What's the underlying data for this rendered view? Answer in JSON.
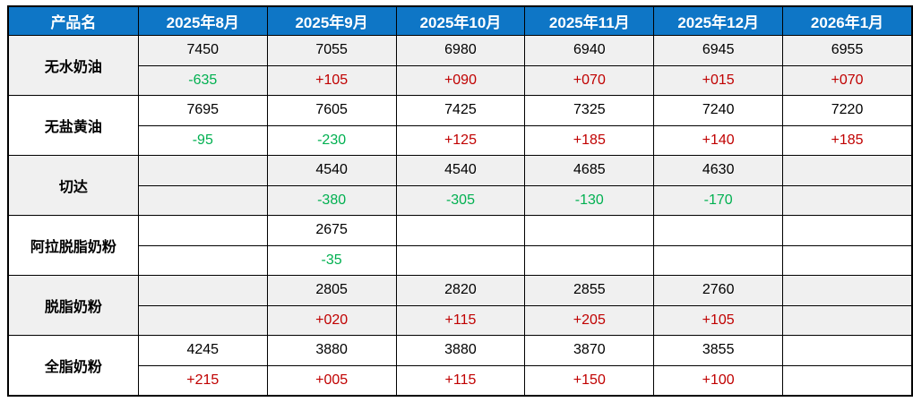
{
  "table": {
    "columns": [
      "产品名",
      "2025年8月",
      "2025年9月",
      "2025年10月",
      "2025年11月",
      "2025年12月",
      "2026年1月"
    ],
    "products": [
      {
        "name": "无水奶油",
        "prices": [
          "7450",
          "7055",
          "6980",
          "6940",
          "6945",
          "6955"
        ],
        "changes": [
          "-635",
          "+105",
          "+090",
          "+070",
          "+015",
          "+070"
        ]
      },
      {
        "name": "无盐黄油",
        "prices": [
          "7695",
          "7605",
          "7425",
          "7325",
          "7240",
          "7220"
        ],
        "changes": [
          "-95",
          "-230",
          "+125",
          "+185",
          "+140",
          "+185"
        ]
      },
      {
        "name": "切达",
        "prices": [
          "",
          "4540",
          "4540",
          "4685",
          "4630",
          ""
        ],
        "changes": [
          "",
          "-380",
          "-305",
          "-130",
          "-170",
          ""
        ]
      },
      {
        "name": "阿拉脱脂奶粉",
        "prices": [
          "",
          "2675",
          "",
          "",
          "",
          ""
        ],
        "changes": [
          "",
          "-35",
          "",
          "",
          "",
          ""
        ]
      },
      {
        "name": "脱脂奶粉",
        "prices": [
          "",
          "2805",
          "2820",
          "2855",
          "2760",
          ""
        ],
        "changes": [
          "",
          "+020",
          "+115",
          "+205",
          "+105",
          ""
        ]
      },
      {
        "name": "全脂奶粉",
        "prices": [
          "4245",
          "3880",
          "3880",
          "3870",
          "3855",
          ""
        ],
        "changes": [
          "+215",
          "+005",
          "+115",
          "+150",
          "+100",
          ""
        ]
      }
    ]
  },
  "colors": {
    "header_bg": "#0E76C6",
    "header_text": "#FFFFFF",
    "positive": "#C00000",
    "negative": "#00B050",
    "band": "#F0F0F0",
    "border": "#000000"
  }
}
